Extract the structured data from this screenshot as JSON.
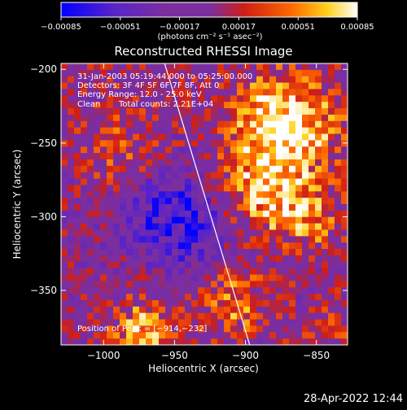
{
  "chart_data": {
    "type": "heatmap",
    "title": "Reconstructed RHESSI Image",
    "xlabel": "Heliocentric X (arcsec)",
    "ylabel": "Heliocentric Y (arcsec)",
    "xlim": [
      -1030,
      -828
    ],
    "ylim": [
      -387,
      -196
    ],
    "xticks": [
      -1000,
      -950,
      -900,
      -850
    ],
    "xtick_labels": [
      "−1000",
      "−950",
      "−900",
      "−850"
    ],
    "yticks": [
      -200,
      -250,
      -300,
      -350
    ],
    "ytick_labels": [
      "−200",
      "−250",
      "−300",
      "−350"
    ],
    "colorbar": {
      "range": [
        -0.00085,
        0.00085
      ],
      "tick_values": [
        -0.00085,
        -0.00051,
        -0.00017,
        0.00017,
        0.00051,
        0.00085
      ],
      "tick_labels": [
        "−0.00085",
        "−0.00051",
        "−0.00017",
        "0.00017",
        "0.00051",
        "0.00085"
      ],
      "unit_label": "(photons cm⁻² s⁻¹ asec⁻²)",
      "colors": [
        "#0000ff",
        "#5a24c8",
        "#7a2ea0",
        "#d01e16",
        "#ff6a00",
        "#ffd21e",
        "#ffffff"
      ]
    },
    "annotations": {
      "time_range": "31-Jan-2003 05:19:44.000 to 05:25:00.000",
      "detectors": "Detectors: 3F 4F 5F 6F 7F 8F, Att 0",
      "energy_range": "Energy Range: 12.0 - 25.0 keV",
      "clean": "Clean",
      "total_counts": "Total counts: 2.21E+04",
      "peak": "Position of Peak = [−914,−232]"
    },
    "limb_line": {
      "x": [
        -957,
        -897
      ],
      "y": [
        -196,
        -387
      ]
    },
    "grid": false
  },
  "footer": {
    "timestamp": "28-Apr-2022 12:44"
  }
}
